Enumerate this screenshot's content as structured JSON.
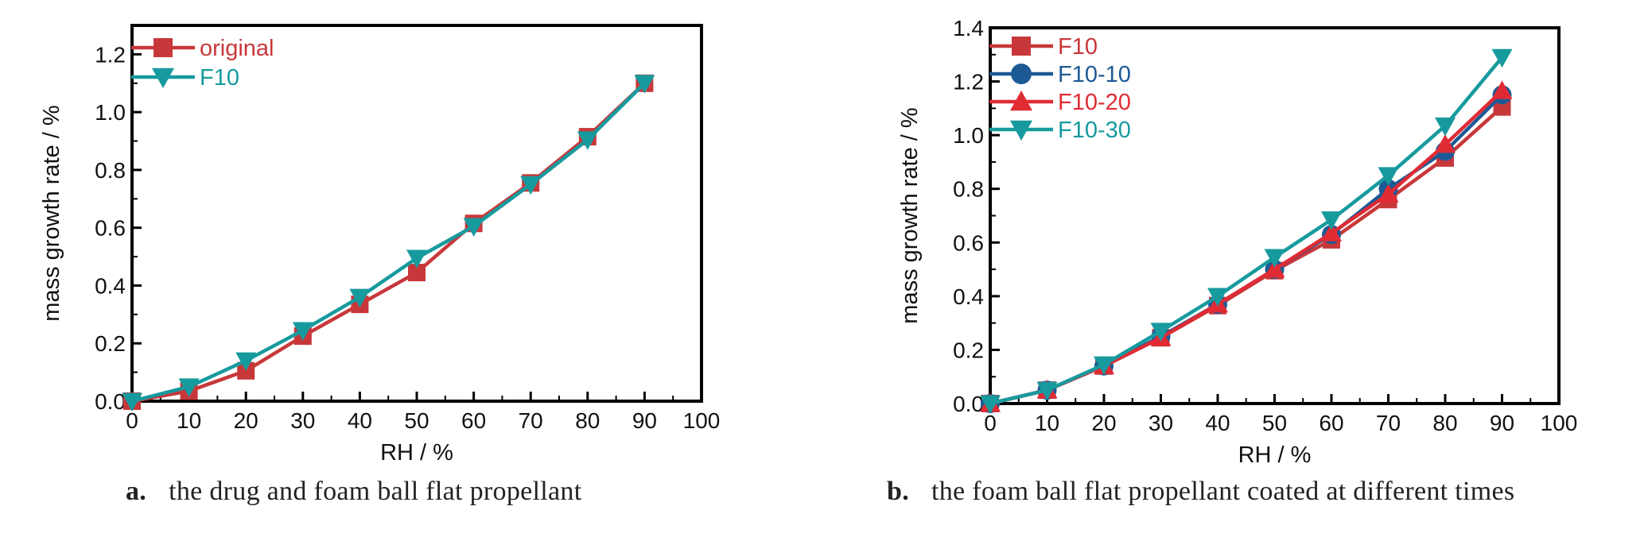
{
  "chart_data": [
    {
      "type": "line",
      "caption_letter": "a.",
      "caption": "the drug and foam ball flat propellant",
      "xlabel": "RH / %",
      "ylabel": "mass growth rate / %",
      "xlim": [
        0,
        100
      ],
      "ylim": [
        0,
        1.3
      ],
      "xticks": [
        0,
        10,
        20,
        30,
        40,
        50,
        60,
        70,
        80,
        90,
        100
      ],
      "xtick_labels": [
        "0",
        "10",
        "20",
        "30",
        "40",
        "50",
        "60",
        "70",
        "80",
        "90",
        "100"
      ],
      "yticks": [
        0,
        0.2,
        0.4,
        0.6,
        0.8,
        1.0,
        1.2
      ],
      "ytick_labels": [
        "0.0",
        "0.2",
        "0.4",
        "0.6",
        "0.8",
        "1.0",
        "1.2"
      ],
      "legend_position": "top-left",
      "grid": false,
      "x": [
        0,
        10,
        20,
        30,
        40,
        50,
        60,
        70,
        80,
        90
      ],
      "series": [
        {
          "name": "original",
          "color": "#c8383a",
          "marker": "square",
          "values": [
            0.0,
            0.035,
            0.105,
            0.225,
            0.335,
            0.445,
            0.615,
            0.755,
            0.915,
            1.1
          ]
        },
        {
          "name": "F10",
          "color": "#179a9e",
          "marker": "triangle-down",
          "values": [
            0.0,
            0.05,
            0.14,
            0.245,
            0.36,
            0.495,
            0.605,
            0.75,
            0.905,
            1.1
          ]
        }
      ]
    },
    {
      "type": "line",
      "caption_letter": "b.",
      "caption": "the foam ball flat propellant coated at different times",
      "xlabel": "RH / %",
      "ylabel": "mass growth rate / %",
      "xlim": [
        0,
        100
      ],
      "ylim": [
        0,
        1.4
      ],
      "xticks": [
        0,
        10,
        20,
        30,
        40,
        50,
        60,
        70,
        80,
        90,
        100
      ],
      "xtick_labels": [
        "0",
        "10",
        "20",
        "30",
        "40",
        "50",
        "60",
        "70",
        "80",
        "90",
        "100"
      ],
      "yticks": [
        0,
        0.2,
        0.4,
        0.6,
        0.8,
        1.0,
        1.2,
        1.4
      ],
      "ytick_labels": [
        "0.0",
        "0.2",
        "0.4",
        "0.6",
        "0.8",
        "1.0",
        "1.2",
        "1.4"
      ],
      "legend_position": "top-left",
      "grid": false,
      "x": [
        0,
        10,
        20,
        30,
        40,
        50,
        60,
        70,
        80,
        90
      ],
      "series": [
        {
          "name": "F10",
          "color": "#c8383a",
          "marker": "square",
          "values": [
            0.0,
            0.05,
            0.14,
            0.245,
            0.365,
            0.495,
            0.61,
            0.76,
            0.915,
            1.105
          ]
        },
        {
          "name": "F10-10",
          "color": "#1d5a95",
          "marker": "circle",
          "values": [
            0.0,
            0.05,
            0.14,
            0.25,
            0.37,
            0.5,
            0.63,
            0.8,
            0.94,
            1.15
          ]
        },
        {
          "name": "F10-20",
          "color": "#e02b35",
          "marker": "triangle-up",
          "values": [
            0.0,
            0.05,
            0.14,
            0.245,
            0.37,
            0.5,
            0.635,
            0.78,
            0.965,
            1.165
          ]
        },
        {
          "name": "F10-30",
          "color": "#179a9e",
          "marker": "triangle-down",
          "values": [
            0.0,
            0.05,
            0.145,
            0.27,
            0.4,
            0.545,
            0.685,
            0.85,
            1.035,
            1.29
          ]
        }
      ]
    }
  ]
}
